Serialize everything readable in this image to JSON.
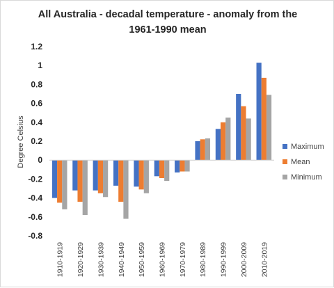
{
  "chart_data": {
    "type": "bar",
    "title": "All Australia - decadal temperature - anomaly from the 1961-1990 mean",
    "title_lines": [
      "All Australia - decadal temperature - anomaly from the",
      "1961-1990 mean"
    ],
    "xlabel": "",
    "ylabel": "Degree Celsius",
    "ylim": [
      -0.8,
      1.2
    ],
    "yticks": [
      1.2,
      1,
      0.8,
      0.6,
      0.4,
      0.2,
      0,
      -0.2,
      -0.4,
      -0.6,
      -0.8
    ],
    "grid": false,
    "legend_position": "right",
    "categories": [
      "1910-1919",
      "1920-1929",
      "1930-1939",
      "1940-1949",
      "1950-1959",
      "1960-1969",
      "1970-1979",
      "1980-1989",
      "1990-1999",
      "2000-2009",
      "2010-2019"
    ],
    "series": [
      {
        "name": "Maximum",
        "color": "#4472c4",
        "values": [
          -0.4,
          -0.32,
          -0.32,
          -0.27,
          -0.28,
          -0.17,
          -0.13,
          0.2,
          0.33,
          0.7,
          1.03
        ]
      },
      {
        "name": "Mean",
        "color": "#ed7d31",
        "values": [
          -0.45,
          -0.44,
          -0.35,
          -0.44,
          -0.31,
          -0.19,
          -0.12,
          0.22,
          0.4,
          0.57,
          0.87
        ]
      },
      {
        "name": "Minimum",
        "color": "#a5a5a5",
        "values": [
          -0.52,
          -0.58,
          -0.39,
          -0.62,
          -0.35,
          -0.22,
          -0.12,
          0.23,
          0.45,
          0.44,
          0.69
        ]
      }
    ]
  }
}
